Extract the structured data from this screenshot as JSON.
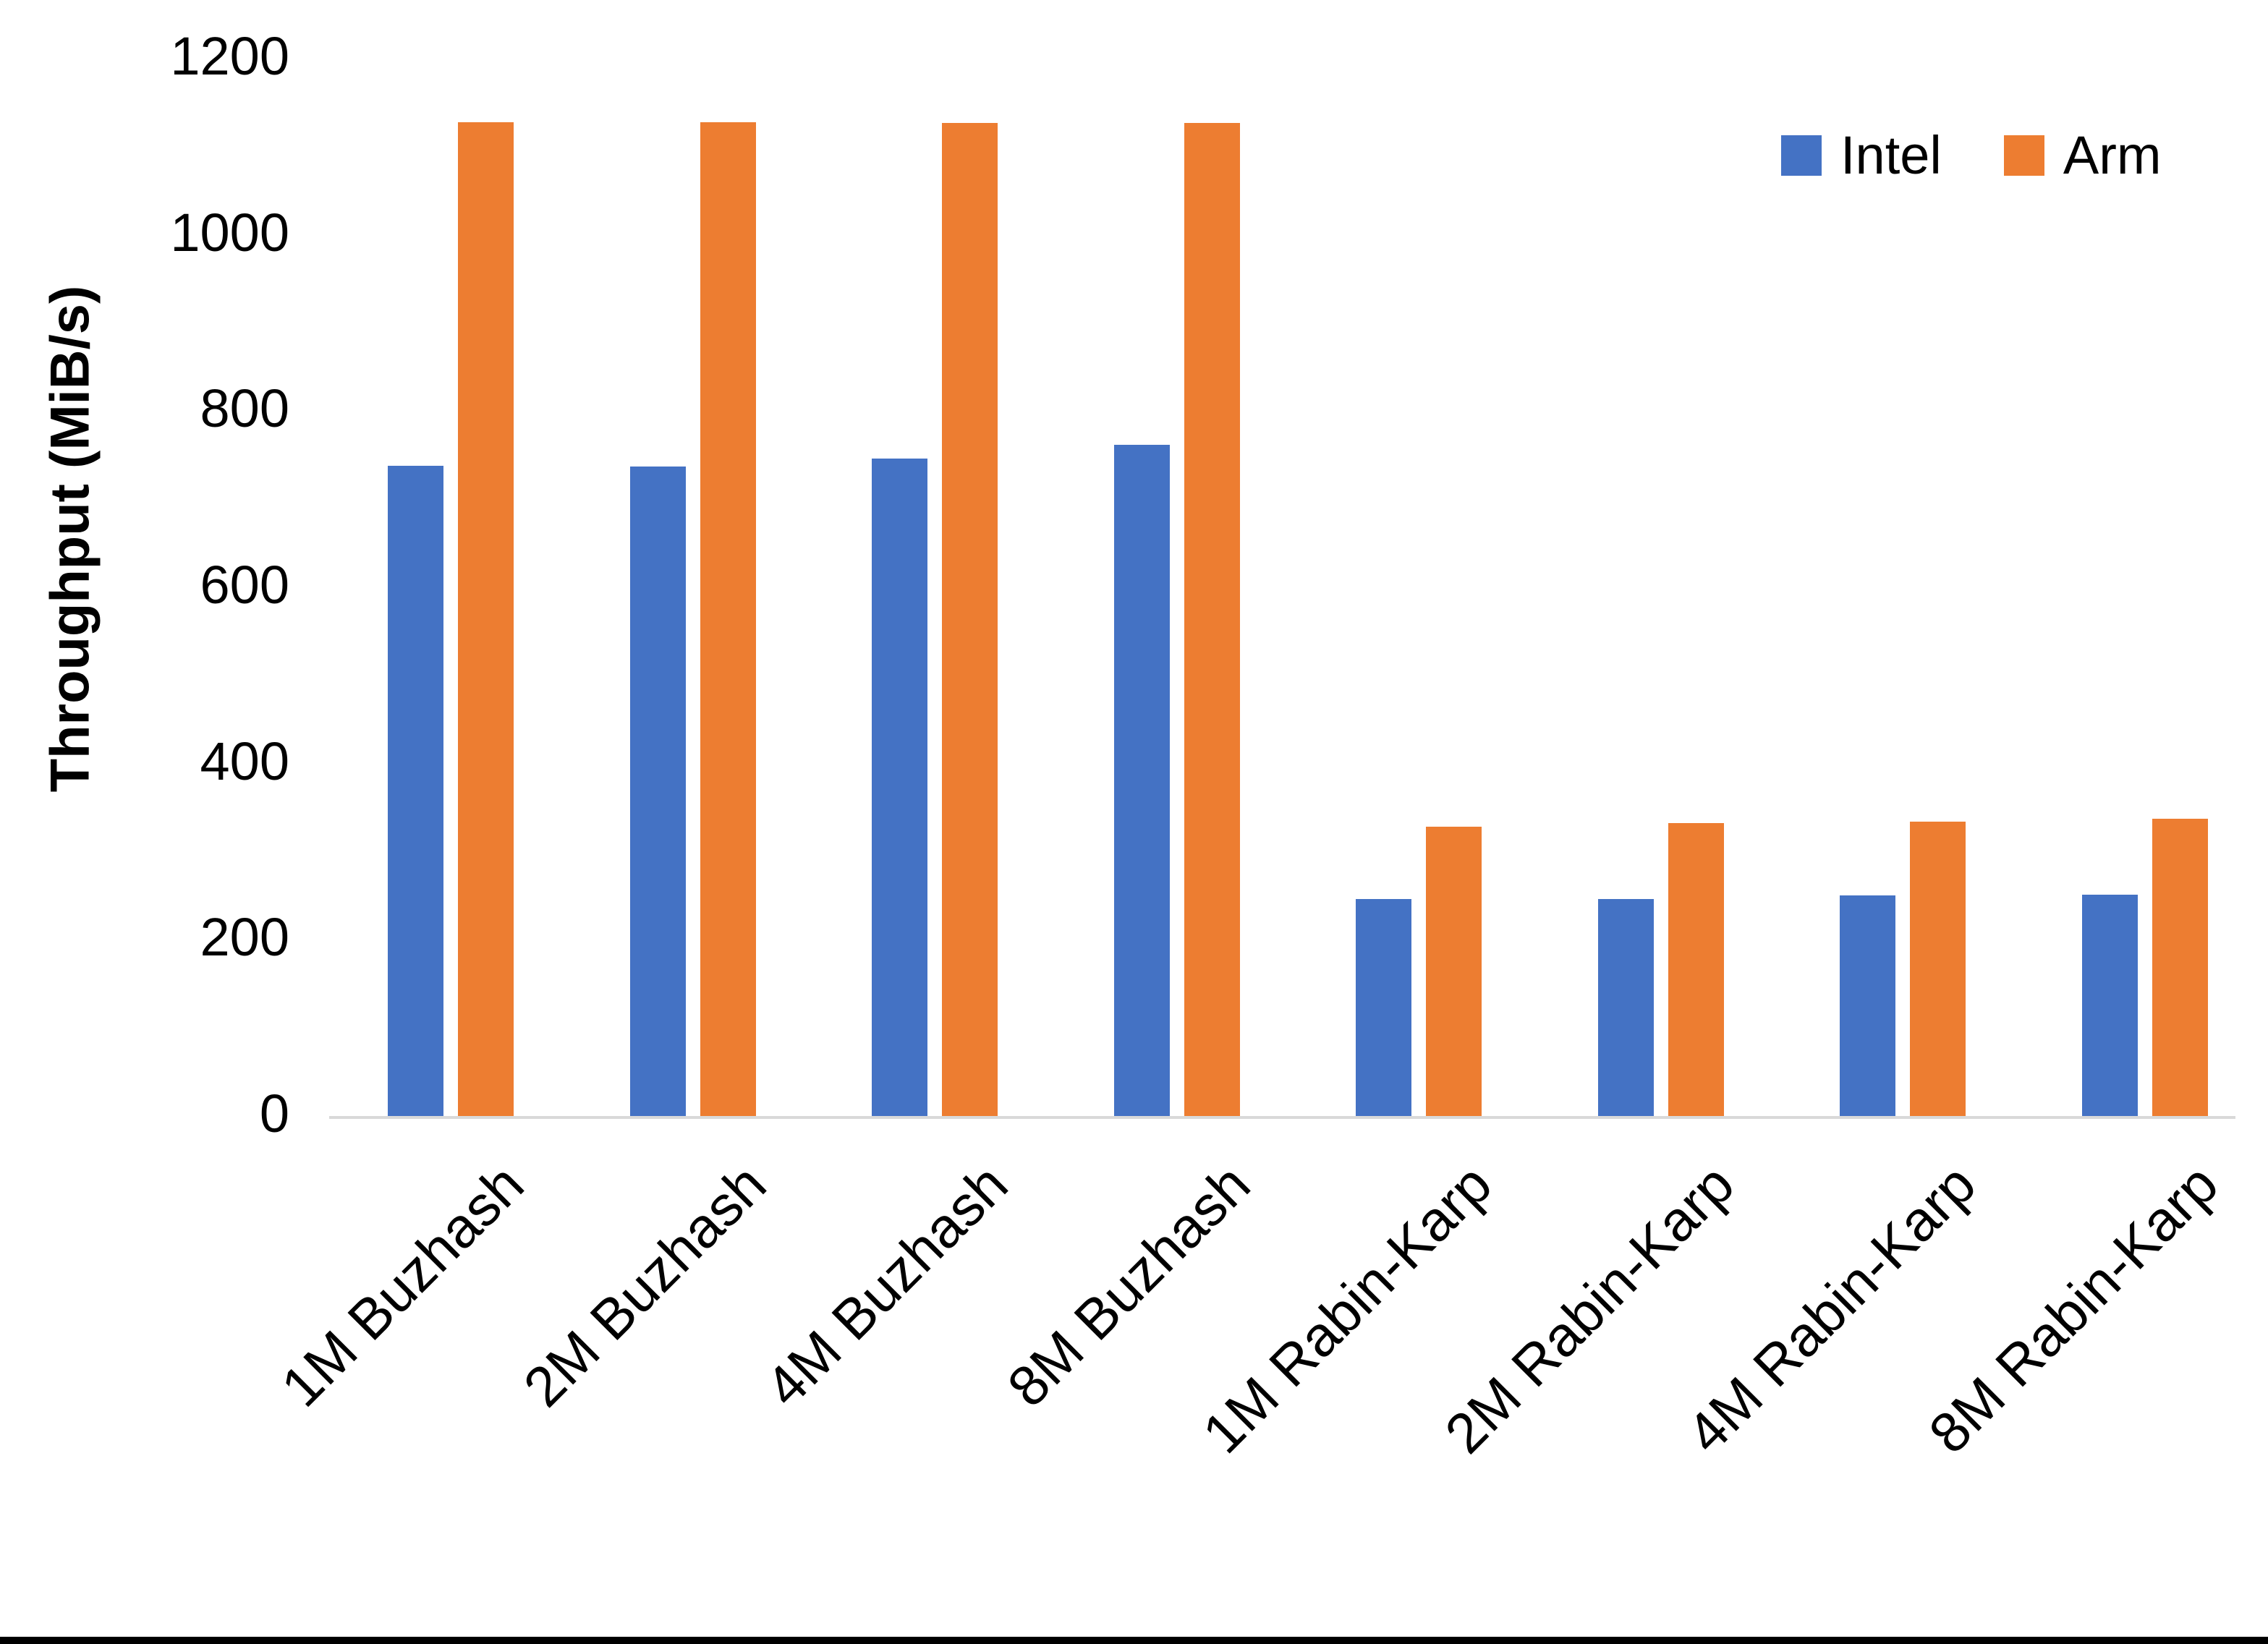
{
  "chart_data": {
    "type": "bar",
    "title": "",
    "xlabel": "",
    "ylabel": "Throughput (MiB/s)",
    "ylim": [
      0,
      1200
    ],
    "yticks": [
      0,
      200,
      400,
      600,
      800,
      1000,
      1200
    ],
    "grid": false,
    "legend_position": "top-right",
    "categories": [
      "1M Buzhash",
      "2M Buzhash",
      "4M Buzhash",
      "8M Buzhash",
      "1M Rabin-Karp",
      "2M Rabin-Karp",
      "4M Rabin-Karp",
      "8M Rabin-Karp"
    ],
    "series": [
      {
        "name": "Intel",
        "color": "#4472C4",
        "values": [
          738,
          737,
          746,
          762,
          246,
          246,
          250,
          251
        ]
      },
      {
        "name": "Arm",
        "color": "#ED7D31",
        "values": [
          1128,
          1128,
          1127,
          1127,
          328,
          332,
          334,
          337
        ]
      }
    ],
    "axis_line_color": "#D9D9D9",
    "text_color": "#000000"
  }
}
